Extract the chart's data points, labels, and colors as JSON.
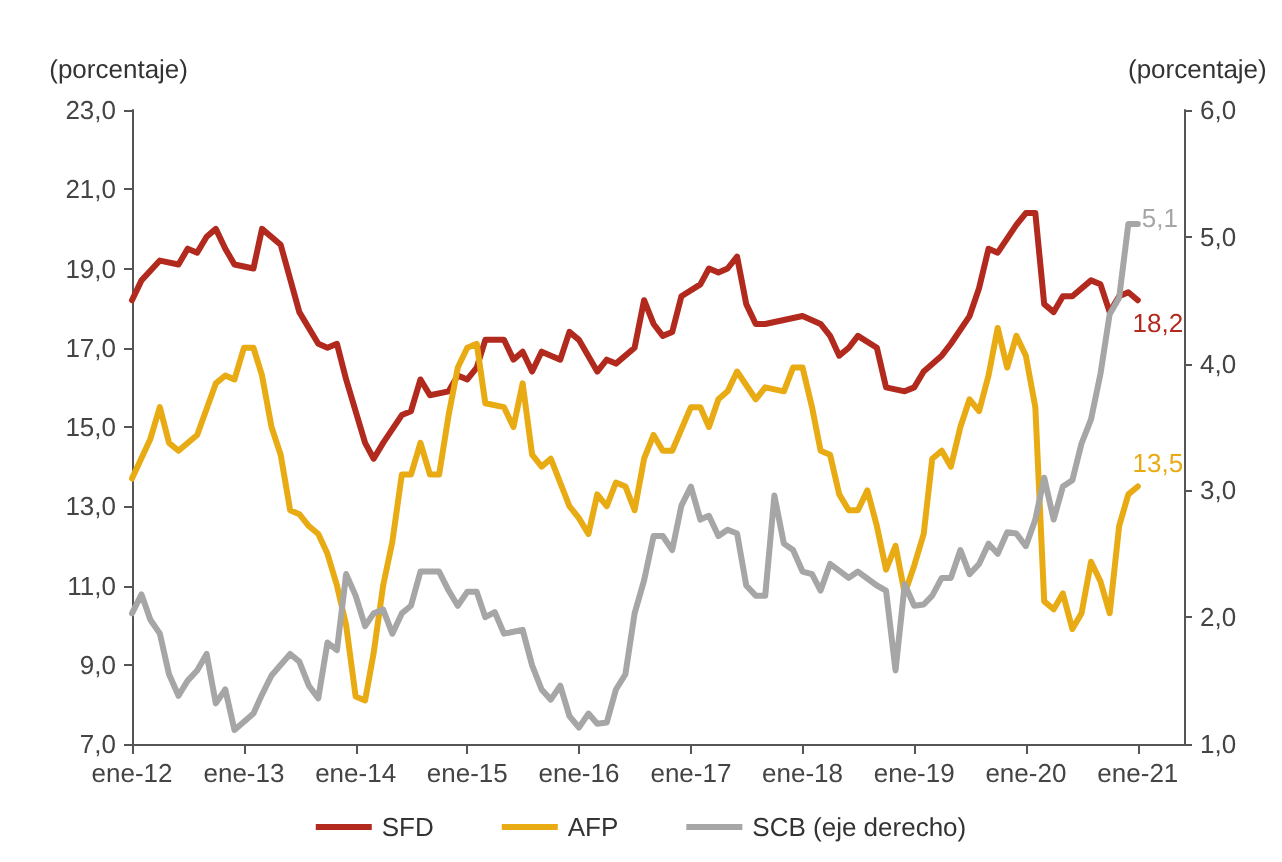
{
  "chart_data": {
    "type": "line",
    "ylabel": "(porcentaje)",
    "y2label": "(porcentaje)",
    "legend": "bottom",
    "grid": false,
    "marker": "none",
    "line_style": "solid",
    "xlim": [
      "2012-01",
      "2021-06"
    ],
    "xticks": [
      {
        "value": "2012-01",
        "label": "ene-12"
      },
      {
        "value": "2013-01",
        "label": "ene-13"
      },
      {
        "value": "2014-01",
        "label": "ene-14"
      },
      {
        "value": "2015-01",
        "label": "ene-15"
      },
      {
        "value": "2016-01",
        "label": "ene-16"
      },
      {
        "value": "2017-01",
        "label": "ene-17"
      },
      {
        "value": "2018-01",
        "label": "ene-18"
      },
      {
        "value": "2019-01",
        "label": "ene-19"
      },
      {
        "value": "2020-01",
        "label": "ene-20"
      },
      {
        "value": "2021-01",
        "label": "ene-21"
      }
    ],
    "ylim": [
      7,
      23
    ],
    "yticks": [
      {
        "value": 7,
        "label": "7,0"
      },
      {
        "value": 9,
        "label": "9,0"
      },
      {
        "value": 11,
        "label": "11,0"
      },
      {
        "value": 13,
        "label": "13,0"
      },
      {
        "value": 15,
        "label": "15,0"
      },
      {
        "value": 17,
        "label": "17,0"
      },
      {
        "value": 19,
        "label": "19,0"
      },
      {
        "value": 21,
        "label": "21,0"
      },
      {
        "value": 23,
        "label": "23,0"
      }
    ],
    "y2lim": [
      1,
      6
    ],
    "y2ticks": [
      {
        "value": 1,
        "label": "1,0"
      },
      {
        "value": 2,
        "label": "2,0"
      },
      {
        "value": 3,
        "label": "3,0"
      },
      {
        "value": 4,
        "label": "4,0"
      },
      {
        "value": 5,
        "label": "5,0"
      },
      {
        "value": 6,
        "label": "6,0"
      }
    ],
    "series": [
      {
        "name": "SFD",
        "color": "#b22a1e",
        "x": [
          "2012-01",
          "2012-02",
          "2012-04",
          "2012-06",
          "2012-07",
          "2012-08",
          "2012-09",
          "2012-10",
          "2012-11",
          "2012-12",
          "2013-02",
          "2013-03",
          "2013-05",
          "2013-07",
          "2013-09",
          "2013-10",
          "2013-11",
          "2013-12",
          "2014-02",
          "2014-03",
          "2014-04",
          "2014-06",
          "2014-07",
          "2014-08",
          "2014-09",
          "2014-11",
          "2014-12",
          "2015-01",
          "2015-02",
          "2015-03",
          "2015-05",
          "2015-06",
          "2015-07",
          "2015-08",
          "2015-09",
          "2015-11",
          "2015-12",
          "2016-01",
          "2016-03",
          "2016-04",
          "2016-05",
          "2016-07",
          "2016-08",
          "2016-09",
          "2016-10",
          "2016-11",
          "2016-12",
          "2017-02",
          "2017-03",
          "2017-04",
          "2017-05",
          "2017-06",
          "2017-07",
          "2017-08",
          "2017-09",
          "2017-11",
          "2018-01",
          "2018-03",
          "2018-04",
          "2018-05",
          "2018-06",
          "2018-07",
          "2018-09",
          "2018-10",
          "2018-12",
          "2019-01",
          "2019-02",
          "2019-04",
          "2019-05",
          "2019-07",
          "2019-08",
          "2019-09",
          "2019-10",
          "2019-12",
          "2020-01",
          "2020-02",
          "2020-03",
          "2020-04",
          "2020-05",
          "2020-06",
          "2020-08",
          "2020-09",
          "2020-10",
          "2020-11",
          "2020-12",
          "2021-01"
        ],
        "values": [
          18.2,
          18.7,
          19.2,
          19.1,
          19.5,
          19.4,
          19.8,
          20.0,
          19.5,
          19.1,
          19.0,
          20.0,
          19.6,
          17.9,
          17.1,
          17.0,
          17.1,
          16.2,
          14.6,
          14.2,
          14.6,
          15.3,
          15.4,
          16.2,
          15.8,
          15.9,
          16.3,
          16.2,
          16.5,
          17.2,
          17.2,
          16.7,
          16.9,
          16.4,
          16.9,
          16.7,
          17.4,
          17.2,
          16.4,
          16.7,
          16.6,
          17.0,
          18.2,
          17.6,
          17.3,
          17.4,
          18.3,
          18.6,
          19.0,
          18.9,
          19.0,
          19.3,
          18.1,
          17.6,
          17.6,
          17.7,
          17.8,
          17.6,
          17.3,
          16.8,
          17.0,
          17.3,
          17.0,
          16.0,
          15.9,
          16.0,
          16.4,
          16.8,
          17.1,
          17.8,
          18.5,
          19.5,
          19.4,
          20.1,
          20.4,
          20.4,
          18.1,
          17.9,
          18.3,
          18.3,
          18.7,
          18.6,
          17.9,
          18.3,
          18.4,
          18.2
        ],
        "value_labels": [
          null,
          null,
          null,
          null,
          null,
          null,
          null,
          null,
          null,
          null,
          null,
          null,
          null,
          null,
          null,
          null,
          null,
          null,
          null,
          null,
          null,
          null,
          null,
          null,
          null,
          null,
          null,
          null,
          null,
          null,
          null,
          null,
          null,
          null,
          null,
          null,
          null,
          null,
          null,
          null,
          null,
          null,
          null,
          null,
          null,
          null,
          null,
          null,
          null,
          null,
          null,
          null,
          null,
          null,
          null,
          null,
          null,
          null,
          null,
          null,
          null,
          null,
          null,
          null,
          null,
          null,
          null,
          null,
          null,
          null,
          null,
          null,
          null,
          null,
          null,
          null,
          null,
          null,
          null,
          null,
          null,
          null,
          null,
          null,
          null,
          "18,2"
        ]
      },
      {
        "name": "AFP",
        "color": "#e8ab14",
        "x": [
          "2012-01",
          "2012-03",
          "2012-04",
          "2012-05",
          "2012-06",
          "2012-08",
          "2012-10",
          "2012-11",
          "2012-12",
          "2013-01",
          "2013-02",
          "2013-03",
          "2013-04",
          "2013-05",
          "2013-06",
          "2013-07",
          "2013-08",
          "2013-09",
          "2013-10",
          "2013-11",
          "2013-12",
          "2014-01",
          "2014-02",
          "2014-03",
          "2014-04",
          "2014-05",
          "2014-06",
          "2014-07",
          "2014-08",
          "2014-09",
          "2014-10",
          "2014-11",
          "2014-12",
          "2015-01",
          "2015-02",
          "2015-03",
          "2015-05",
          "2015-06",
          "2015-07",
          "2015-08",
          "2015-09",
          "2015-10",
          "2015-12",
          "2016-01",
          "2016-02",
          "2016-03",
          "2016-04",
          "2016-05",
          "2016-06",
          "2016-07",
          "2016-08",
          "2016-09",
          "2016-10",
          "2016-11",
          "2017-01",
          "2017-02",
          "2017-03",
          "2017-04",
          "2017-05",
          "2017-06",
          "2017-08",
          "2017-09",
          "2017-11",
          "2017-12",
          "2018-01",
          "2018-02",
          "2018-03",
          "2018-04",
          "2018-05",
          "2018-06",
          "2018-07",
          "2018-08",
          "2018-09",
          "2018-10",
          "2018-11",
          "2018-12",
          "2019-01",
          "2019-02",
          "2019-03",
          "2019-04",
          "2019-05",
          "2019-06",
          "2019-07",
          "2019-08",
          "2019-09",
          "2019-10",
          "2019-11",
          "2019-12",
          "2020-01",
          "2020-02",
          "2020-03",
          "2020-04",
          "2020-05",
          "2020-06",
          "2020-07",
          "2020-08",
          "2020-09",
          "2020-10",
          "2020-11",
          "2020-12",
          "2021-01"
        ],
        "values": [
          13.7,
          14.7,
          15.5,
          14.6,
          14.4,
          14.8,
          16.1,
          16.3,
          16.2,
          17.0,
          17.0,
          16.3,
          15.0,
          14.3,
          12.9,
          12.8,
          12.5,
          12.3,
          11.8,
          11.0,
          10.0,
          8.2,
          8.1,
          9.3,
          11.0,
          12.1,
          13.8,
          13.8,
          14.6,
          13.8,
          13.8,
          15.3,
          16.5,
          17.0,
          17.1,
          15.6,
          15.5,
          15.0,
          16.1,
          14.3,
          14.0,
          14.2,
          13.0,
          12.7,
          12.3,
          13.3,
          13.0,
          13.6,
          13.5,
          12.9,
          14.2,
          14.8,
          14.4,
          14.4,
          15.5,
          15.5,
          15.0,
          15.7,
          15.9,
          16.4,
          15.7,
          16.0,
          15.9,
          16.5,
          16.5,
          15.5,
          14.4,
          14.3,
          13.3,
          12.9,
          12.9,
          13.4,
          12.5,
          11.4,
          12.0,
          10.8,
          11.5,
          12.3,
          14.2,
          14.4,
          14.0,
          15.0,
          15.7,
          15.4,
          16.3,
          17.5,
          16.5,
          17.3,
          16.8,
          15.5,
          10.6,
          10.4,
          10.8,
          9.9,
          10.3,
          11.6,
          11.1,
          10.3,
          12.5,
          13.3,
          13.5
        ],
        "value_labels": [
          null,
          null,
          null,
          null,
          null,
          null,
          null,
          null,
          null,
          null,
          null,
          null,
          null,
          null,
          null,
          null,
          null,
          null,
          null,
          null,
          null,
          null,
          null,
          null,
          null,
          null,
          null,
          null,
          null,
          null,
          null,
          null,
          null,
          null,
          null,
          null,
          null,
          null,
          null,
          null,
          null,
          null,
          null,
          null,
          null,
          null,
          null,
          null,
          null,
          null,
          null,
          null,
          null,
          null,
          null,
          null,
          null,
          null,
          null,
          null,
          null,
          null,
          null,
          null,
          null,
          null,
          null,
          null,
          null,
          null,
          null,
          null,
          null,
          null,
          null,
          null,
          null,
          null,
          null,
          null,
          null,
          null,
          null,
          null,
          null,
          null,
          null,
          null,
          null,
          null,
          null,
          null,
          null,
          null,
          null,
          null,
          null,
          null,
          null,
          null,
          "13,5"
        ]
      },
      {
        "name": "SCB (eje derecho)",
        "color": "#a6a6a6",
        "axis": "y2",
        "x": [
          "2012-01",
          "2012-02",
          "2012-03",
          "2012-04",
          "2012-05",
          "2012-06",
          "2012-07",
          "2012-08",
          "2012-09",
          "2012-10",
          "2012-11",
          "2012-12",
          "2013-02",
          "2013-03",
          "2013-04",
          "2013-06",
          "2013-07",
          "2013-08",
          "2013-09",
          "2013-10",
          "2013-11",
          "2013-12",
          "2014-01",
          "2014-02",
          "2014-03",
          "2014-04",
          "2014-05",
          "2014-06",
          "2014-07",
          "2014-08",
          "2014-10",
          "2014-11",
          "2014-12",
          "2015-01",
          "2015-02",
          "2015-03",
          "2015-04",
          "2015-05",
          "2015-07",
          "2015-08",
          "2015-09",
          "2015-10",
          "2015-11",
          "2015-12",
          "2016-01",
          "2016-02",
          "2016-03",
          "2016-04",
          "2016-05",
          "2016-06",
          "2016-07",
          "2016-08",
          "2016-09",
          "2016-10",
          "2016-11",
          "2016-12",
          "2017-01",
          "2017-02",
          "2017-03",
          "2017-04",
          "2017-05",
          "2017-06",
          "2017-07",
          "2017-08",
          "2017-09",
          "2017-10",
          "2017-11",
          "2017-12",
          "2018-01",
          "2018-02",
          "2018-03",
          "2018-04",
          "2018-06",
          "2018-07",
          "2018-09",
          "2018-10",
          "2018-11",
          "2018-12",
          "2019-01",
          "2019-02",
          "2019-03",
          "2019-04",
          "2019-05",
          "2019-06",
          "2019-07",
          "2019-08",
          "2019-09",
          "2019-10",
          "2019-11",
          "2019-12",
          "2020-01",
          "2020-02",
          "2020-03",
          "2020-04",
          "2020-05",
          "2020-06",
          "2020-07",
          "2020-08",
          "2020-09",
          "2020-10",
          "2020-11",
          "2020-12",
          "2021-01"
        ],
        "values": [
          2.03,
          2.18,
          1.98,
          1.87,
          1.55,
          1.38,
          1.5,
          1.58,
          1.71,
          1.32,
          1.43,
          1.11,
          1.24,
          1.39,
          1.54,
          1.71,
          1.65,
          1.46,
          1.36,
          1.8,
          1.74,
          2.34,
          2.17,
          1.93,
          2.03,
          2.06,
          1.87,
          2.03,
          2.09,
          2.36,
          2.36,
          2.21,
          2.09,
          2.2,
          2.2,
          2.0,
          2.04,
          1.87,
          1.9,
          1.62,
          1.43,
          1.35,
          1.46,
          1.22,
          1.13,
          1.24,
          1.16,
          1.17,
          1.43,
          1.55,
          2.03,
          2.29,
          2.64,
          2.64,
          2.53,
          2.88,
          3.03,
          2.77,
          2.8,
          2.64,
          2.69,
          2.66,
          2.25,
          2.17,
          2.17,
          2.96,
          2.58,
          2.53,
          2.36,
          2.34,
          2.21,
          2.42,
          2.31,
          2.36,
          2.25,
          2.21,
          1.58,
          2.26,
          2.09,
          2.1,
          2.17,
          2.31,
          2.31,
          2.53,
          2.34,
          2.42,
          2.58,
          2.5,
          2.67,
          2.66,
          2.56,
          2.77,
          3.1,
          2.77,
          3.03,
          3.08,
          3.37,
          3.56,
          3.92,
          4.39,
          4.52,
          5.1,
          5.1
        ],
        "value_labels": [
          null,
          null,
          null,
          null,
          null,
          null,
          null,
          null,
          null,
          null,
          null,
          null,
          null,
          null,
          null,
          null,
          null,
          null,
          null,
          null,
          null,
          null,
          null,
          null,
          null,
          null,
          null,
          null,
          null,
          null,
          null,
          null,
          null,
          null,
          null,
          null,
          null,
          null,
          null,
          null,
          null,
          null,
          null,
          null,
          null,
          null,
          null,
          null,
          null,
          null,
          null,
          null,
          null,
          null,
          null,
          null,
          null,
          null,
          null,
          null,
          null,
          null,
          null,
          null,
          null,
          null,
          null,
          null,
          null,
          null,
          null,
          null,
          null,
          null,
          null,
          null,
          null,
          null,
          null,
          null,
          null,
          null,
          null,
          null,
          null,
          null,
          null,
          null,
          null,
          null,
          null,
          null,
          null,
          null,
          null,
          null,
          null,
          null,
          null,
          null,
          null,
          null,
          "5,1"
        ]
      }
    ]
  }
}
